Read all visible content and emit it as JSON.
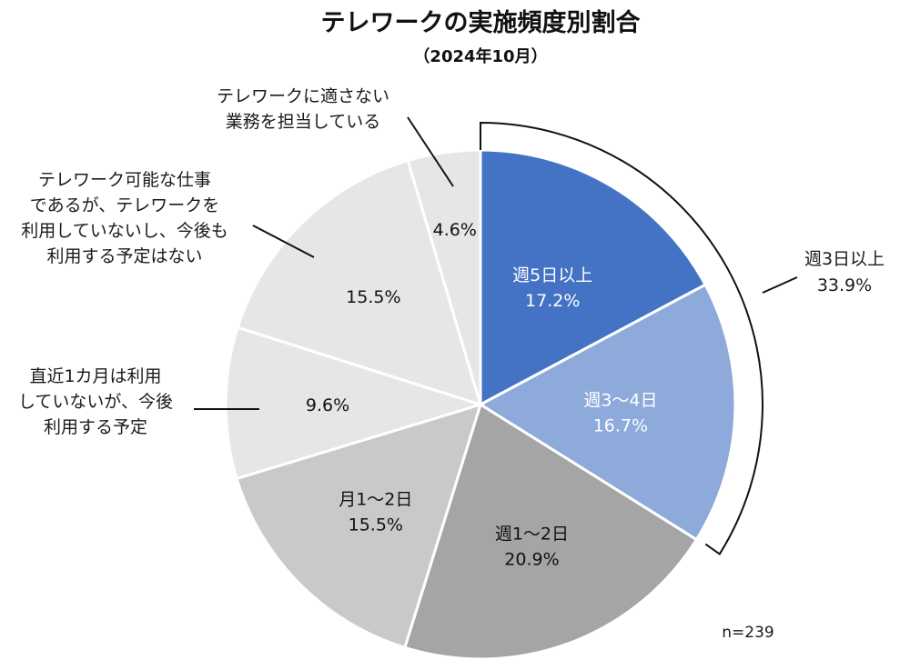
{
  "chart_data": {
    "type": "pie",
    "title": "テレワークの実施頻度別割合",
    "subtitle": "（2024年10月）",
    "note": "n=239",
    "slices": [
      {
        "label": "週5日以上",
        "value": 17.2,
        "value_text": "17.2%",
        "color": "#4472c4",
        "text_color": "#ffffff"
      },
      {
        "label": "週3～4日",
        "value": 16.7,
        "value_text": "16.7%",
        "color": "#8eaadb",
        "text_color": "#ffffff"
      },
      {
        "label": "週1～2日",
        "value": 20.9,
        "value_text": "20.9%",
        "color": "#a5a5a5",
        "text_color": "#111111"
      },
      {
        "label": "月1～2日",
        "value": 15.5,
        "value_text": "15.5%",
        "color": "#c9c9c9",
        "text_color": "#111111"
      },
      {
        "label": "直近1カ月は利用していないが、今後利用する予定",
        "value": 9.6,
        "value_text": "9.6%",
        "color": "#e7e6e6",
        "text_color": "#111111"
      },
      {
        "label": "テレワーク可能な仕事であるが、テレワークを利用していないし、今後も利用する予定はない",
        "value": 15.5,
        "value_text": "15.5%",
        "color": "#e7e6e6",
        "text_color": "#111111"
      },
      {
        "label": "テレワークに適さない業務を担当している",
        "value": 4.6,
        "value_text": "4.6%",
        "color": "#e7e6e6",
        "text_color": "#111111"
      }
    ],
    "outside_labels": {
      "not_used_plan": [
        "直近1カ月は利用",
        "していないが、今後",
        "利用する予定"
      ],
      "not_used_no_plan": [
        "テレワーク可能な仕事",
        "であるが、テレワークを",
        "利用していないし、今後も",
        "利用する予定はない"
      ],
      "not_suitable": [
        "テレワークに適さない",
        "業務を担当している"
      ]
    },
    "bracket": {
      "label": "週3日以上",
      "value_text": "33.9%"
    }
  }
}
